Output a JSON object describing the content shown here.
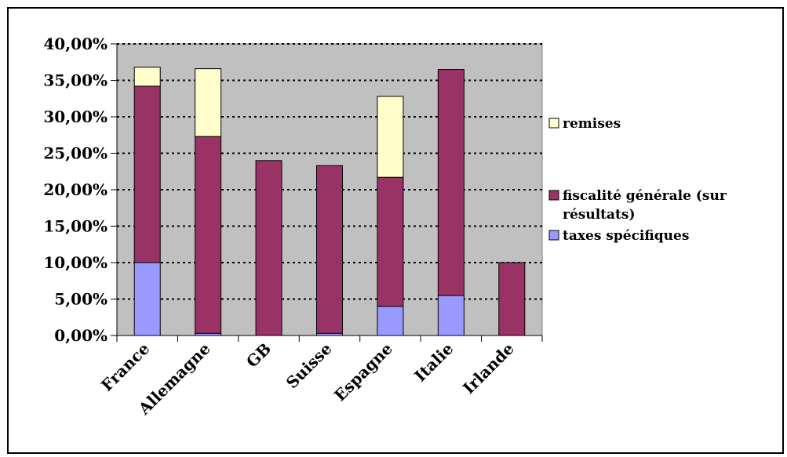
{
  "chart_data": {
    "type": "bar",
    "stacked": true,
    "categories": [
      "France",
      "Allemagne",
      "GB",
      "Suisse",
      "Espagne",
      "Italie",
      "Irlande"
    ],
    "series": [
      {
        "name": "taxes spécifiques",
        "color": "#9999ff",
        "values": [
          10.0,
          0.3,
          0.0,
          0.3,
          4.0,
          5.5,
          0.0
        ]
      },
      {
        "name": "fiscalité générale (sur résultats)",
        "color": "#993366",
        "values": [
          24.2,
          27.0,
          24.0,
          23.0,
          17.7,
          31.0,
          10.0
        ]
      },
      {
        "name": "remises",
        "color": "#ffffcc",
        "values": [
          2.6,
          9.3,
          0.0,
          0.0,
          11.1,
          0.0,
          0.0
        ]
      }
    ],
    "yticks": [
      "0,00%",
      "5,00%",
      "10,00%",
      "15,00%",
      "20,00%",
      "25,00%",
      "30,00%",
      "35,00%",
      "40,00%"
    ],
    "ylim": [
      0,
      40
    ],
    "grid": true,
    "legend_position": "right",
    "legend": [
      {
        "lines": [
          "remises"
        ],
        "color": "#ffffcc"
      },
      {
        "lines": [
          "fiscalité générale (sur",
          "résultats)"
        ],
        "color": "#993366"
      },
      {
        "lines": [
          "taxes spécifiques"
        ],
        "color": "#9999ff"
      }
    ],
    "plot_background": "#c0c0c0"
  }
}
